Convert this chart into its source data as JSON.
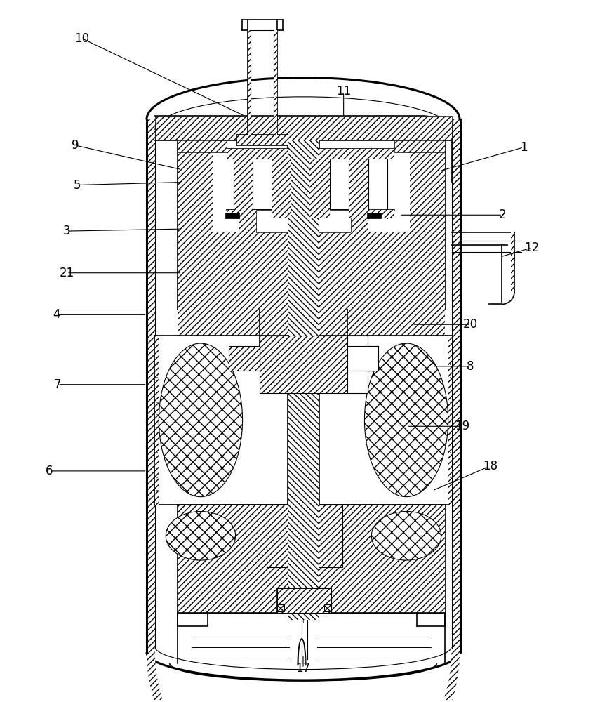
{
  "background_color": "#ffffff",
  "line_color": "#000000",
  "figsize": [
    8.65,
    10.0
  ],
  "dpi": 100,
  "labels": [
    [
      "10",
      115,
      52
    ],
    [
      "9",
      105,
      205
    ],
    [
      "5",
      108,
      262
    ],
    [
      "3",
      93,
      328
    ],
    [
      "21",
      93,
      388
    ],
    [
      "4",
      78,
      448
    ],
    [
      "7",
      80,
      548
    ],
    [
      "6",
      68,
      672
    ],
    [
      "11",
      490,
      128
    ],
    [
      "1",
      748,
      208
    ],
    [
      "2",
      718,
      305
    ],
    [
      "12",
      760,
      352
    ],
    [
      "20",
      672,
      462
    ],
    [
      "8",
      672,
      522
    ],
    [
      "19",
      660,
      608
    ],
    [
      "18",
      700,
      665
    ],
    [
      "17",
      432,
      955
    ]
  ],
  "label_lines": [
    [
      "10",
      115,
      52,
      348,
      163
    ],
    [
      "9",
      105,
      205,
      258,
      240
    ],
    [
      "5",
      108,
      262,
      258,
      258
    ],
    [
      "3",
      93,
      328,
      258,
      325
    ],
    [
      "21",
      93,
      388,
      258,
      388
    ],
    [
      "4",
      78,
      448,
      208,
      448
    ],
    [
      "7",
      80,
      548,
      208,
      548
    ],
    [
      "6",
      68,
      672,
      208,
      672
    ],
    [
      "11",
      490,
      128,
      490,
      165
    ],
    [
      "1",
      748,
      208,
      628,
      242
    ],
    [
      "2",
      718,
      305,
      570,
      305
    ],
    [
      "12",
      760,
      352,
      715,
      365
    ],
    [
      "20",
      672,
      462,
      588,
      462
    ],
    [
      "8",
      672,
      522,
      618,
      522
    ],
    [
      "19",
      660,
      608,
      580,
      608
    ],
    [
      "18",
      700,
      665,
      618,
      700
    ],
    [
      "17",
      432,
      955,
      432,
      935
    ]
  ]
}
